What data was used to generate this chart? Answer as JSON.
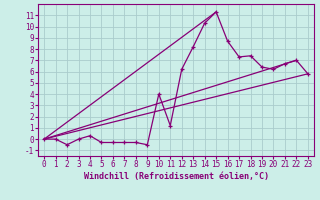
{
  "xlabel": "Windchill (Refroidissement éolien,°C)",
  "bg_color": "#cceee8",
  "grid_color": "#aacccc",
  "line_color": "#880077",
  "xlim": [
    -0.5,
    23.5
  ],
  "ylim": [
    -1.5,
    12.0
  ],
  "xticks": [
    0,
    1,
    2,
    3,
    4,
    5,
    6,
    7,
    8,
    9,
    10,
    11,
    12,
    13,
    14,
    15,
    16,
    17,
    18,
    19,
    20,
    21,
    22,
    23
  ],
  "yticks": [
    -1,
    0,
    1,
    2,
    3,
    4,
    5,
    6,
    7,
    8,
    9,
    10,
    11
  ],
  "series": [
    [
      0,
      0.0
    ],
    [
      1,
      0.0
    ],
    [
      2,
      -0.5
    ],
    [
      3,
      0.0
    ],
    [
      4,
      0.3
    ],
    [
      5,
      -0.3
    ],
    [
      6,
      -0.3
    ],
    [
      7,
      -0.3
    ],
    [
      8,
      -0.3
    ],
    [
      9,
      -0.5
    ],
    [
      10,
      4.0
    ],
    [
      11,
      1.2
    ],
    [
      12,
      6.2
    ],
    [
      13,
      8.2
    ],
    [
      14,
      10.3
    ],
    [
      15,
      11.3
    ],
    [
      16,
      8.7
    ],
    [
      17,
      7.3
    ],
    [
      18,
      7.4
    ],
    [
      19,
      6.4
    ],
    [
      20,
      6.2
    ],
    [
      21,
      6.7
    ],
    [
      22,
      7.0
    ],
    [
      23,
      5.8
    ]
  ],
  "line2": [
    [
      0,
      0.0
    ],
    [
      23,
      5.8
    ]
  ],
  "line3": [
    [
      0,
      0.0
    ],
    [
      15,
      11.3
    ]
  ],
  "line4": [
    [
      0,
      0.0
    ],
    [
      22,
      7.0
    ]
  ]
}
